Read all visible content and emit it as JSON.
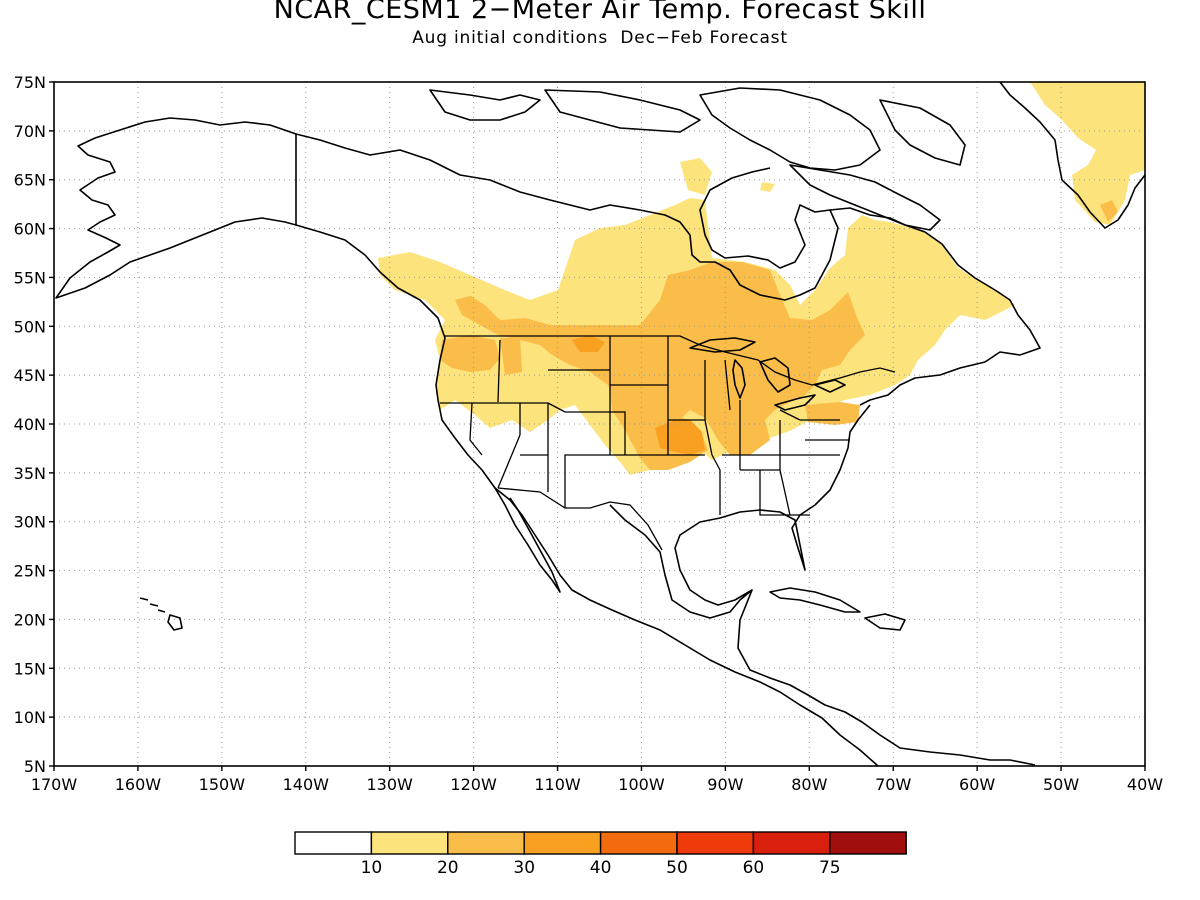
{
  "title": "NCAR_CESM1 2−Meter Air Temp. Forecast Skill",
  "subtitle": "Aug initial conditions  Dec−Feb Forecast",
  "map": {
    "lon_range": [
      -170,
      -40
    ],
    "lat_range": [
      5,
      75
    ],
    "lat_labels": [
      "5N",
      "10N",
      "15N",
      "20N",
      "25N",
      "30N",
      "35N",
      "40N",
      "45N",
      "50N",
      "55N",
      "60N",
      "65N",
      "70N",
      "75N"
    ],
    "lon_labels": [
      "170W",
      "160W",
      "150W",
      "140W",
      "130W",
      "120W",
      "110W",
      "100W",
      "90W",
      "80W",
      "70W",
      "60W",
      "50W",
      "40W"
    ],
    "gridlines": "dotted"
  },
  "colorbar": {
    "colors": [
      "#ffffff",
      "#fde37c",
      "#fbbd4a",
      "#f9a020",
      "#f26c0f",
      "#ef3a0b",
      "#d8200c",
      "#a00e0e"
    ],
    "labels": [
      "10",
      "20",
      "30",
      "40",
      "50",
      "60",
      "75"
    ]
  },
  "icons": [
    "land-outline",
    "skill-shading"
  ]
}
